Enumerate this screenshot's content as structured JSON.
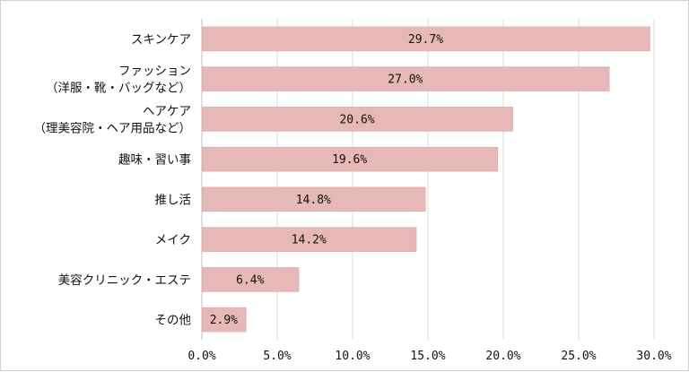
{
  "chart_data": {
    "type": "bar",
    "orientation": "horizontal",
    "categories": [
      [
        "スキンケア"
      ],
      [
        "ファッション",
        "（洋服・靴・バッグなど）"
      ],
      [
        "ヘアケア",
        "（理美容院・ヘア用品など）"
      ],
      [
        "趣味・習い事"
      ],
      [
        "推し活"
      ],
      [
        "メイク"
      ],
      [
        "美容クリニック・エステ"
      ],
      [
        "その他"
      ]
    ],
    "values": [
      29.7,
      27.0,
      20.6,
      19.6,
      14.8,
      14.2,
      6.4,
      2.9
    ],
    "value_labels": [
      "29.7%",
      "27.0%",
      "20.6%",
      "19.6%",
      "14.8%",
      "14.2%",
      "6.4%",
      "2.9%"
    ],
    "xlim": [
      0,
      30
    ],
    "ticks": [
      0,
      5,
      10,
      15,
      20,
      25,
      30
    ],
    "tick_labels": [
      "0.0%",
      "5.0%",
      "10.0%",
      "15.0%",
      "20.0%",
      "25.0%",
      "30.0%"
    ],
    "grid": "vertical",
    "colors": {
      "bar": "#e6b9b8",
      "bar_edge": "#d9a3a2",
      "grid": "#d9d9d9",
      "axis": "#bfbfbf"
    }
  }
}
